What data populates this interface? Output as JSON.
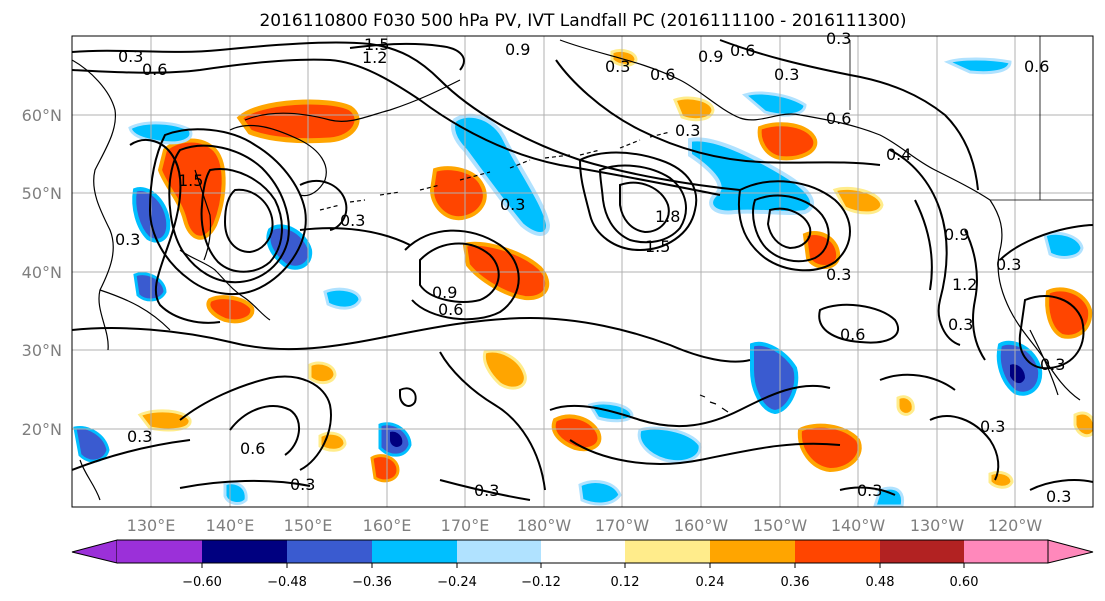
{
  "title": "2016110800 F030 500 hPa PV, IVT Landfall PC (2016111100 - 2016111300)",
  "lat_labels": [
    "60°N",
    "50°N",
    "40°N",
    "30°N",
    "20°N"
  ],
  "lon_labels": [
    "130°E",
    "140°E",
    "150°E",
    "160°E",
    "170°E",
    "180°W",
    "170°W",
    "160°W",
    "150°W",
    "140°W",
    "130°W",
    "120°W"
  ],
  "colorbar": {
    "ticks": [
      "−0.60",
      "−0.48",
      "−0.36",
      "−0.24",
      "−0.12",
      "0.12",
      "0.24",
      "0.36",
      "0.48",
      "0.60"
    ],
    "colors": [
      "#9b30d9",
      "#000080",
      "#3a5bd0",
      "#00bfff",
      "#b0e2ff",
      "#ffffff",
      "#ffec8b",
      "#ffa500",
      "#ff4500",
      "#b22222",
      "#ff88bb"
    ]
  },
  "contour_labels": [
    "0.3",
    "0.6",
    "1.5",
    "1.2",
    "0.9",
    "0.6",
    "0.3",
    "0.9",
    "0.3",
    "0.6",
    "1.5",
    "0.6",
    "0.3",
    "0.3",
    "0.3",
    "0.9",
    "0.6",
    "0.3",
    "1.8",
    "1.5",
    "0.3",
    "0.6",
    "0.4",
    "0.9",
    "1.2",
    "0.3",
    "0.3",
    "0.6",
    "0.3",
    "0.6",
    "0.3",
    "0.3",
    "0.3",
    "0.3",
    "0.3",
    "0.3",
    "0.3"
  ],
  "colors": {
    "contour": "#000000",
    "coastline": "#000000",
    "gridline": "#b0b0b0",
    "axis_label": "#7f7f7f",
    "frame": "#000000"
  }
}
